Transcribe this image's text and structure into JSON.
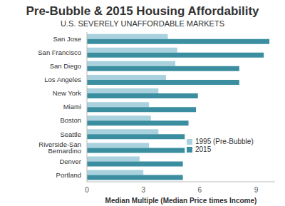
{
  "chart_data": {
    "type": "bar",
    "title": "Pre-Bubble & 2015 Housing Affordability",
    "subtitle": "U.S. SEVERELY UNAFFORDABLE MARKETS",
    "x_label": "Median Multiple (Median Price times Income)",
    "orientation": "horizontal",
    "categories": [
      "San Jose",
      "San Francisco",
      "San Diego",
      "Los Angeles",
      "New York",
      "Miami",
      "Boston",
      "Seattle",
      "Riverside-San Bernardino",
      "Denver",
      "Portland"
    ],
    "series": [
      {
        "name": "1995 (Pre-Bubble)",
        "color": "#a9d1de",
        "values": [
          4.3,
          4.8,
          4.7,
          4.2,
          3.8,
          3.3,
          3.4,
          3.8,
          3.3,
          2.8,
          3.0
        ]
      },
      {
        "name": "2015",
        "color": "#3a8e9f",
        "values": [
          9.7,
          9.4,
          8.1,
          8.1,
          5.9,
          5.8,
          5.4,
          5.2,
          5.2,
          5.1,
          5.1
        ]
      }
    ],
    "xlim": [
      0,
      10
    ],
    "xticks": [
      0,
      3,
      6,
      9
    ],
    "grid": false,
    "legend": "lower right"
  }
}
